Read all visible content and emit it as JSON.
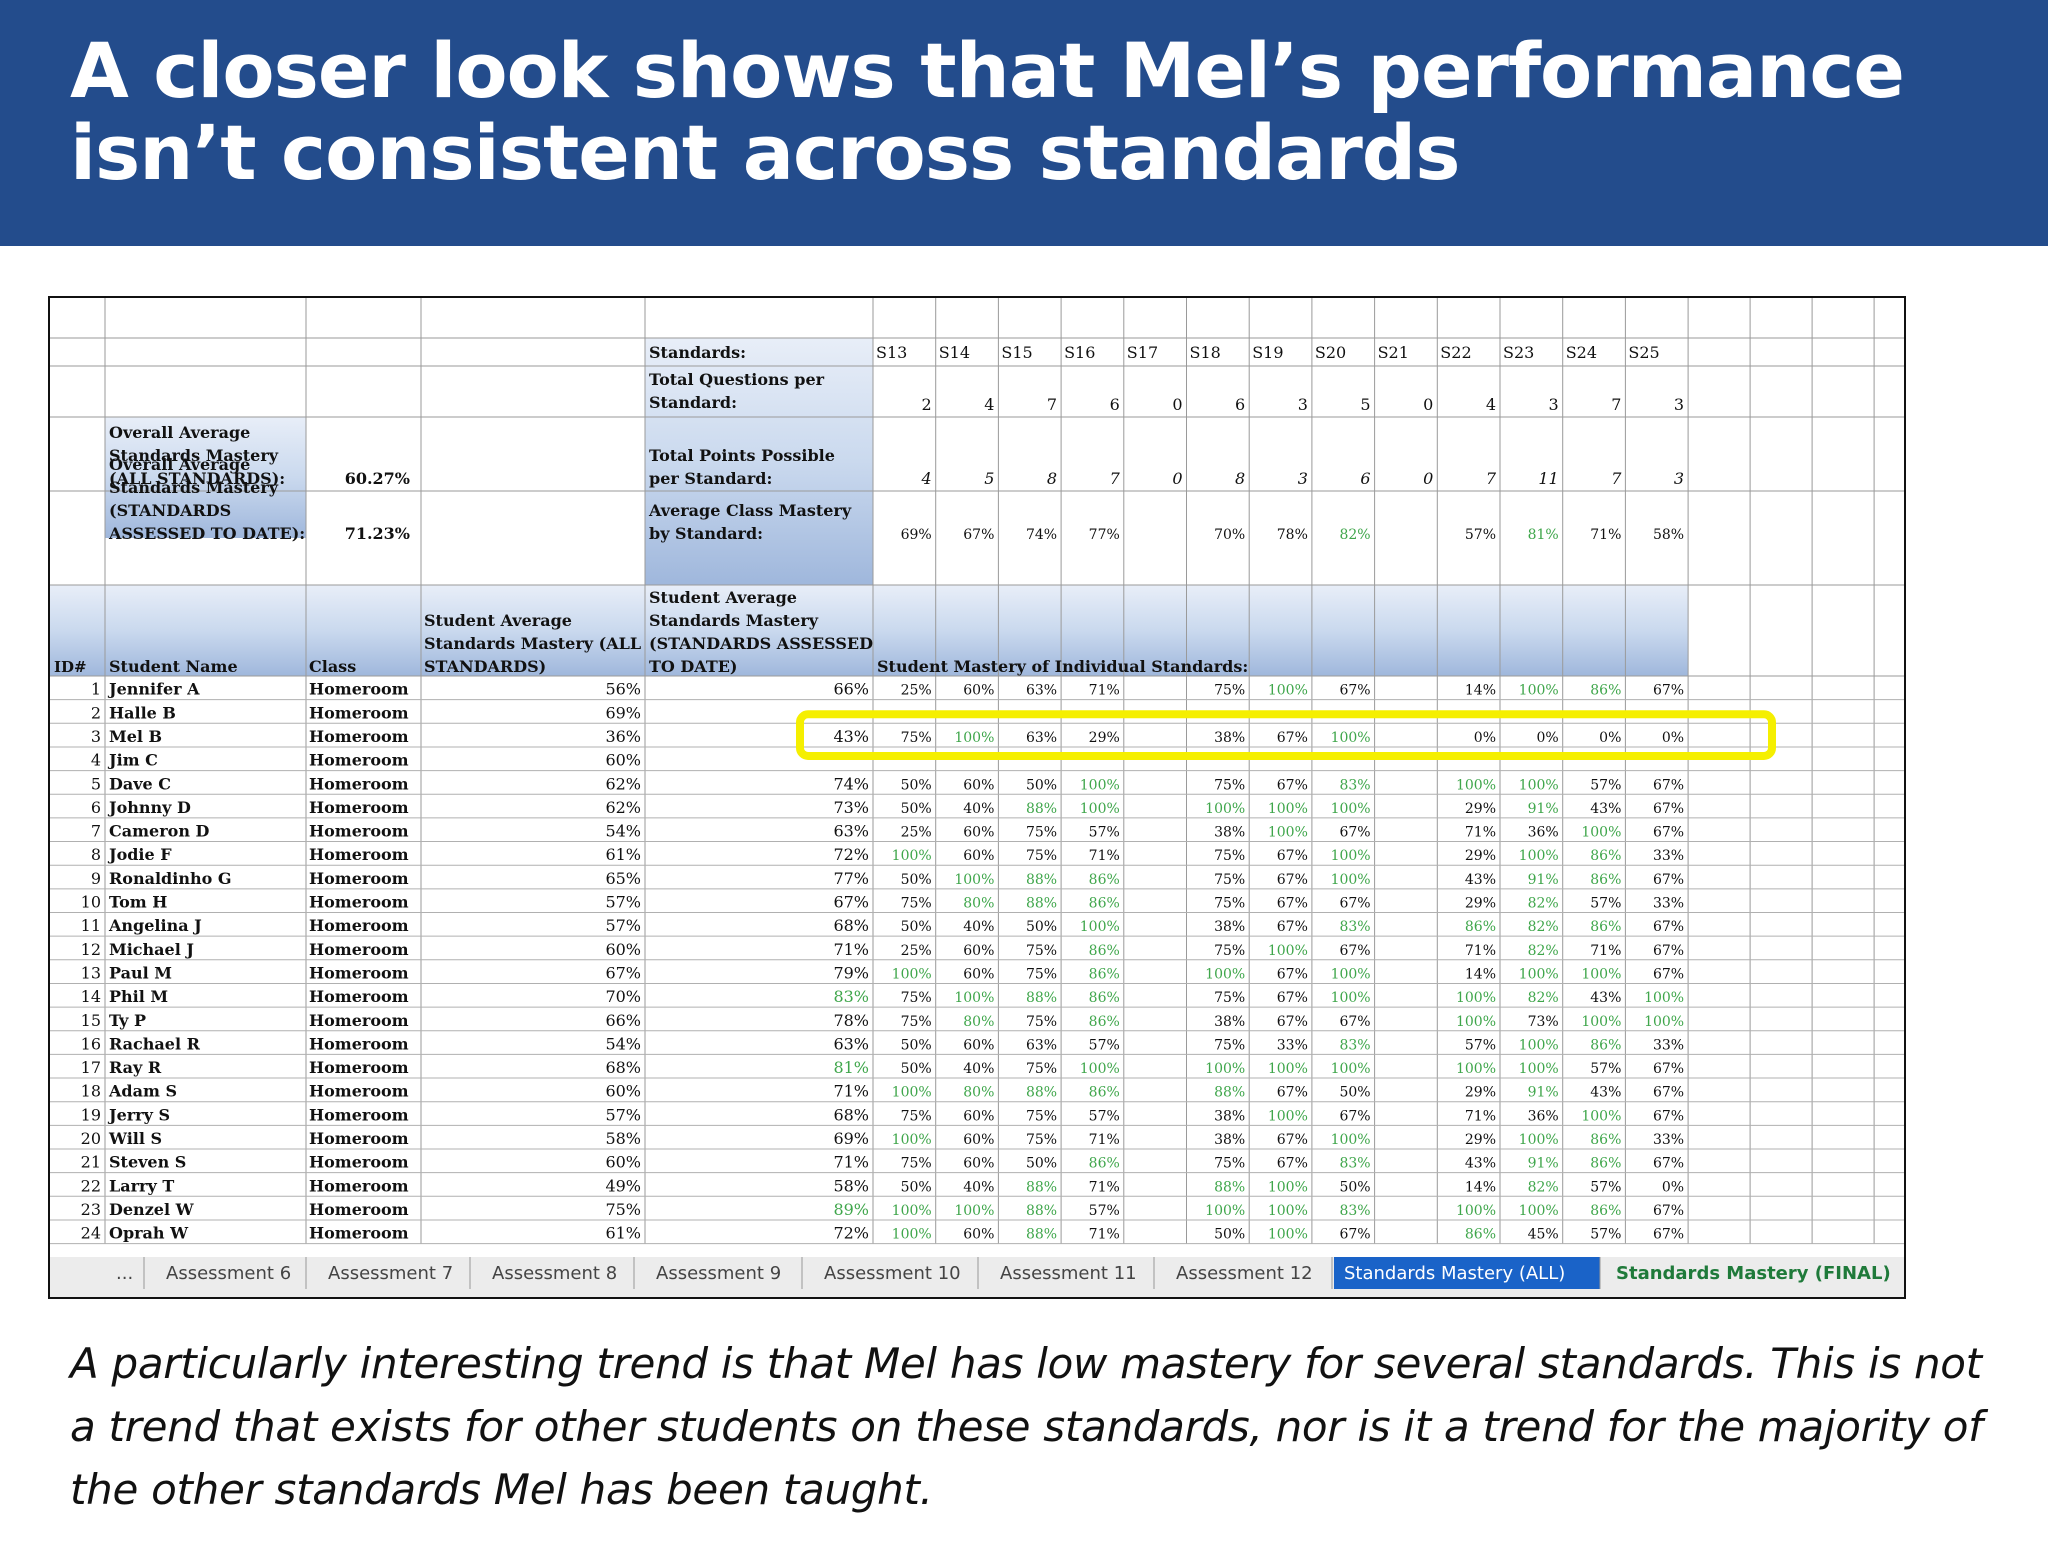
{
  "title": "A closer look shows that Mel’s performance isn’t consistent across standards",
  "caption": "A particularly interesting trend is that Mel has low mastery for several standards. This is not a trend that exists for other students on these standards, nor is it a trend for the majority of the other standards Mel has been taught.",
  "colors": {
    "banner": "#234c8c",
    "header_band": "#cad9ee",
    "highlight": "#f5ef00",
    "green_text": "#3fa64b",
    "active_tab": "#1a63c8"
  },
  "sheet": {
    "labels": {
      "standards": "Standards:",
      "total_questions": "Total Questions per Standard:",
      "total_points": "Total Points Possible per Standard:",
      "avg_class_mastery": "Average Class Mastery by Standard:",
      "overall_all": "Overall Average Standards Mastery (ALL STANDARDS):",
      "overall_all_value": "60.27%",
      "overall_to_date": "Overall Average Standards Mastery (STANDARDS ASSESSED TO DATE):",
      "overall_to_date_value": "71.23%",
      "col_student_avg_all": "Student Average Standards Mastery (ALL STANDARDS)",
      "col_student_avg_to_date": "Student Average Standards Mastery (STANDARDS ASSESSED TO DATE)",
      "col_id": "ID#",
      "col_name": "Student Name",
      "col_class": "Class",
      "individual_heading": "Student Mastery of Individual Standards:"
    },
    "standards": [
      "S13",
      "S14",
      "S15",
      "S16",
      "S17",
      "S18",
      "S19",
      "S20",
      "S21",
      "S22",
      "S23",
      "S24",
      "S25"
    ],
    "total_questions": [
      "2",
      "4",
      "7",
      "6",
      "0",
      "6",
      "3",
      "5",
      "0",
      "4",
      "3",
      "7",
      "3"
    ],
    "total_points": [
      "4",
      "5",
      "8",
      "7",
      "0",
      "8",
      "3",
      "6",
      "0",
      "7",
      "11",
      "7",
      "3"
    ],
    "avg_class_mastery": [
      "69%",
      "67%",
      "74%",
      "77%",
      "",
      "70%",
      "78%",
      "82%",
      "",
      "57%",
      "81%",
      "71%",
      "58%"
    ],
    "students": [
      {
        "id": "1",
        "name": "Jennifer A",
        "class": "Homeroom",
        "avg_all": "56%",
        "avg_to_date": "66%",
        "scores": [
          "25%",
          "60%",
          "63%",
          "71%",
          "",
          "75%",
          "100%",
          "67%",
          "",
          "14%",
          "100%",
          "86%",
          "67%"
        ]
      },
      {
        "id": "2",
        "name": "Halle B",
        "class": "Homeroom",
        "avg_all": "69%",
        "avg_to_date": "",
        "scores": [
          "",
          "",
          "",
          "",
          "",
          "",
          "",
          "",
          "",
          "",
          "",
          "",
          ""
        ]
      },
      {
        "id": "3",
        "name": "Mel B",
        "class": "Homeroom",
        "avg_all": "36%",
        "avg_to_date": "43%",
        "scores": [
          "75%",
          "100%",
          "63%",
          "29%",
          "",
          "38%",
          "67%",
          "100%",
          "",
          "0%",
          "0%",
          "0%",
          "0%"
        ]
      },
      {
        "id": "4",
        "name": "Jim C",
        "class": "Homeroom",
        "avg_all": "60%",
        "avg_to_date": "",
        "scores": [
          "",
          "",
          "",
          "",
          "",
          "",
          "",
          "",
          "",
          "",
          "",
          "",
          ""
        ]
      },
      {
        "id": "5",
        "name": "Dave C",
        "class": "Homeroom",
        "avg_all": "62%",
        "avg_to_date": "74%",
        "scores": [
          "50%",
          "60%",
          "50%",
          "100%",
          "",
          "75%",
          "67%",
          "83%",
          "",
          "100%",
          "100%",
          "57%",
          "67%"
        ]
      },
      {
        "id": "6",
        "name": "Johnny D",
        "class": "Homeroom",
        "avg_all": "62%",
        "avg_to_date": "73%",
        "scores": [
          "50%",
          "40%",
          "88%",
          "100%",
          "",
          "100%",
          "100%",
          "100%",
          "",
          "29%",
          "91%",
          "43%",
          "67%"
        ]
      },
      {
        "id": "7",
        "name": "Cameron D",
        "class": "Homeroom",
        "avg_all": "54%",
        "avg_to_date": "63%",
        "scores": [
          "25%",
          "60%",
          "75%",
          "57%",
          "",
          "38%",
          "100%",
          "67%",
          "",
          "71%",
          "36%",
          "100%",
          "67%"
        ]
      },
      {
        "id": "8",
        "name": "Jodie F",
        "class": "Homeroom",
        "avg_all": "61%",
        "avg_to_date": "72%",
        "scores": [
          "100%",
          "60%",
          "75%",
          "71%",
          "",
          "75%",
          "67%",
          "100%",
          "",
          "29%",
          "100%",
          "86%",
          "33%"
        ]
      },
      {
        "id": "9",
        "name": "Ronaldinho G",
        "class": "Homeroom",
        "avg_all": "65%",
        "avg_to_date": "77%",
        "scores": [
          "50%",
          "100%",
          "88%",
          "86%",
          "",
          "75%",
          "67%",
          "100%",
          "",
          "43%",
          "91%",
          "86%",
          "67%"
        ]
      },
      {
        "id": "10",
        "name": "Tom H",
        "class": "Homeroom",
        "avg_all": "57%",
        "avg_to_date": "67%",
        "scores": [
          "75%",
          "80%",
          "88%",
          "86%",
          "",
          "75%",
          "67%",
          "67%",
          "",
          "29%",
          "82%",
          "57%",
          "33%"
        ]
      },
      {
        "id": "11",
        "name": "Angelina J",
        "class": "Homeroom",
        "avg_all": "57%",
        "avg_to_date": "68%",
        "scores": [
          "50%",
          "40%",
          "50%",
          "100%",
          "",
          "38%",
          "67%",
          "83%",
          "",
          "86%",
          "82%",
          "86%",
          "67%"
        ]
      },
      {
        "id": "12",
        "name": "Michael J",
        "class": "Homeroom",
        "avg_all": "60%",
        "avg_to_date": "71%",
        "scores": [
          "25%",
          "60%",
          "75%",
          "86%",
          "",
          "75%",
          "100%",
          "67%",
          "",
          "71%",
          "82%",
          "71%",
          "67%"
        ]
      },
      {
        "id": "13",
        "name": "Paul M",
        "class": "Homeroom",
        "avg_all": "67%",
        "avg_to_date": "79%",
        "scores": [
          "100%",
          "60%",
          "75%",
          "86%",
          "",
          "100%",
          "67%",
          "100%",
          "",
          "14%",
          "100%",
          "100%",
          "67%"
        ]
      },
      {
        "id": "14",
        "name": "Phil M",
        "class": "Homeroom",
        "avg_all": "70%",
        "avg_to_date": "83%",
        "scores": [
          "75%",
          "100%",
          "88%",
          "86%",
          "",
          "75%",
          "67%",
          "100%",
          "",
          "100%",
          "82%",
          "43%",
          "100%"
        ]
      },
      {
        "id": "15",
        "name": "Ty P",
        "class": "Homeroom",
        "avg_all": "66%",
        "avg_to_date": "78%",
        "scores": [
          "75%",
          "80%",
          "75%",
          "86%",
          "",
          "38%",
          "67%",
          "67%",
          "",
          "100%",
          "73%",
          "100%",
          "100%"
        ]
      },
      {
        "id": "16",
        "name": "Rachael R",
        "class": "Homeroom",
        "avg_all": "54%",
        "avg_to_date": "63%",
        "scores": [
          "50%",
          "60%",
          "63%",
          "57%",
          "",
          "75%",
          "33%",
          "83%",
          "",
          "57%",
          "100%",
          "86%",
          "33%"
        ]
      },
      {
        "id": "17",
        "name": "Ray R",
        "class": "Homeroom",
        "avg_all": "68%",
        "avg_to_date": "81%",
        "scores": [
          "50%",
          "40%",
          "75%",
          "100%",
          "",
          "100%",
          "100%",
          "100%",
          "",
          "100%",
          "100%",
          "57%",
          "67%"
        ]
      },
      {
        "id": "18",
        "name": "Adam S",
        "class": "Homeroom",
        "avg_all": "60%",
        "avg_to_date": "71%",
        "scores": [
          "100%",
          "80%",
          "88%",
          "86%",
          "",
          "88%",
          "67%",
          "50%",
          "",
          "29%",
          "91%",
          "43%",
          "67%"
        ]
      },
      {
        "id": "19",
        "name": "Jerry S",
        "class": "Homeroom",
        "avg_all": "57%",
        "avg_to_date": "68%",
        "scores": [
          "75%",
          "60%",
          "75%",
          "57%",
          "",
          "38%",
          "100%",
          "67%",
          "",
          "71%",
          "36%",
          "100%",
          "67%"
        ]
      },
      {
        "id": "20",
        "name": "Will S",
        "class": "Homeroom",
        "avg_all": "58%",
        "avg_to_date": "69%",
        "scores": [
          "100%",
          "60%",
          "75%",
          "71%",
          "",
          "38%",
          "67%",
          "100%",
          "",
          "29%",
          "100%",
          "86%",
          "33%"
        ]
      },
      {
        "id": "21",
        "name": "Steven S",
        "class": "Homeroom",
        "avg_all": "60%",
        "avg_to_date": "71%",
        "scores": [
          "75%",
          "60%",
          "50%",
          "86%",
          "",
          "75%",
          "67%",
          "83%",
          "",
          "43%",
          "91%",
          "86%",
          "67%"
        ]
      },
      {
        "id": "22",
        "name": "Larry T",
        "class": "Homeroom",
        "avg_all": "49%",
        "avg_to_date": "58%",
        "scores": [
          "50%",
          "40%",
          "88%",
          "71%",
          "",
          "88%",
          "100%",
          "50%",
          "",
          "14%",
          "82%",
          "57%",
          "0%"
        ]
      },
      {
        "id": "23",
        "name": "Denzel W",
        "class": "Homeroom",
        "avg_all": "75%",
        "avg_to_date": "89%",
        "scores": [
          "100%",
          "100%",
          "88%",
          "57%",
          "",
          "100%",
          "100%",
          "83%",
          "",
          "100%",
          "100%",
          "86%",
          "67%"
        ]
      },
      {
        "id": "24",
        "name": "Oprah W",
        "class": "Homeroom",
        "avg_all": "61%",
        "avg_to_date": "72%",
        "scores": [
          "100%",
          "60%",
          "88%",
          "71%",
          "",
          "50%",
          "100%",
          "67%",
          "",
          "86%",
          "45%",
          "57%",
          "67%"
        ]
      }
    ],
    "tabs": [
      "...",
      "Assessment 6",
      "Assessment 7",
      "Assessment 8",
      "Assessment 9",
      "Assessment 10",
      "Assessment 11",
      "Assessment 12",
      "Standards Mastery (ALL)",
      "Standards Mastery (FINAL)"
    ],
    "active_tab": "Standards Mastery (ALL)"
  }
}
